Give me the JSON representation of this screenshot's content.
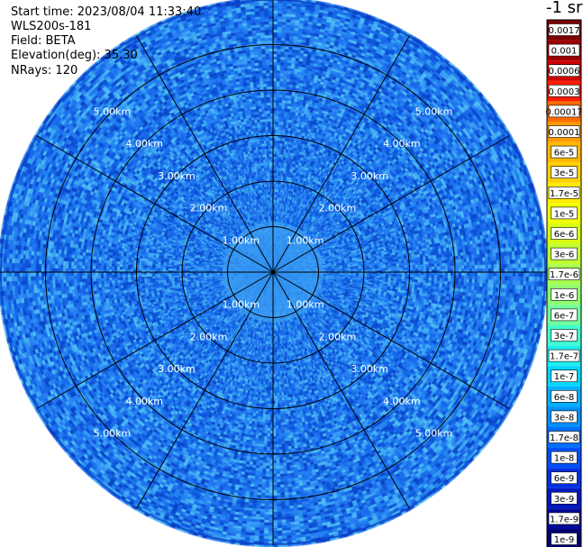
{
  "header": {
    "start_time": "Start time: 2023/08/04 11:33:40",
    "instrument": "WLS200s-181",
    "field": "Field: BETA",
    "elevation": "Elevation(deg): 35.30",
    "nrays": "NRays: 120"
  },
  "colorbar": {
    "units_label": "-1 sr",
    "labels": [
      "0.0017",
      "0.001",
      "0.0006",
      "0.0003",
      "0.00017",
      "0.0001",
      "6e-5",
      "3e-5",
      "1.7e-5",
      "1e-5",
      "6e-6",
      "3e-6",
      "1.7e-6",
      "1e-6",
      "6e-7",
      "3e-7",
      "1.7e-7",
      "1e-7",
      "6e-8",
      "3e-8",
      "1.7e-8",
      "1e-8",
      "6e-9",
      "3e-9",
      "1.7e-9",
      "1e-9"
    ],
    "colors": [
      "#7a0000",
      "#9e0000",
      "#cc0000",
      "#ff1a00",
      "#ff6a00",
      "#ff9a00",
      "#ffb800",
      "#ffd000",
      "#ffec00",
      "#f2ff00",
      "#d8ff10",
      "#c0ff30",
      "#a8ff50",
      "#90ff70",
      "#70ffa0",
      "#40ffd0",
      "#20eef0",
      "#00d8ff",
      "#00b0ff",
      "#0090ff",
      "#0070ff",
      "#0050f8",
      "#0030e0",
      "#0018c0",
      "#000a98",
      "#000070"
    ]
  },
  "chart_data": {
    "type": "heatmap",
    "projection": "polar (PPI)",
    "field": "BETA",
    "rings_km": [
      1,
      2,
      3,
      4,
      5
    ],
    "ring_labels": [
      "1.00km",
      "2.00km",
      "3.00km",
      "4.00km",
      "5.00km"
    ],
    "max_range_km": 6.0,
    "spokes_deg": [
      0,
      30,
      60,
      90,
      120,
      150,
      180,
      210,
      240,
      270,
      300,
      330
    ],
    "nrays": 120,
    "grid": true,
    "dominant_values": "about 1e-8 to 3e-8 sr-1 across the scan, with lower values (about 3e-8 to 6e-8) near 1.00km"
  }
}
